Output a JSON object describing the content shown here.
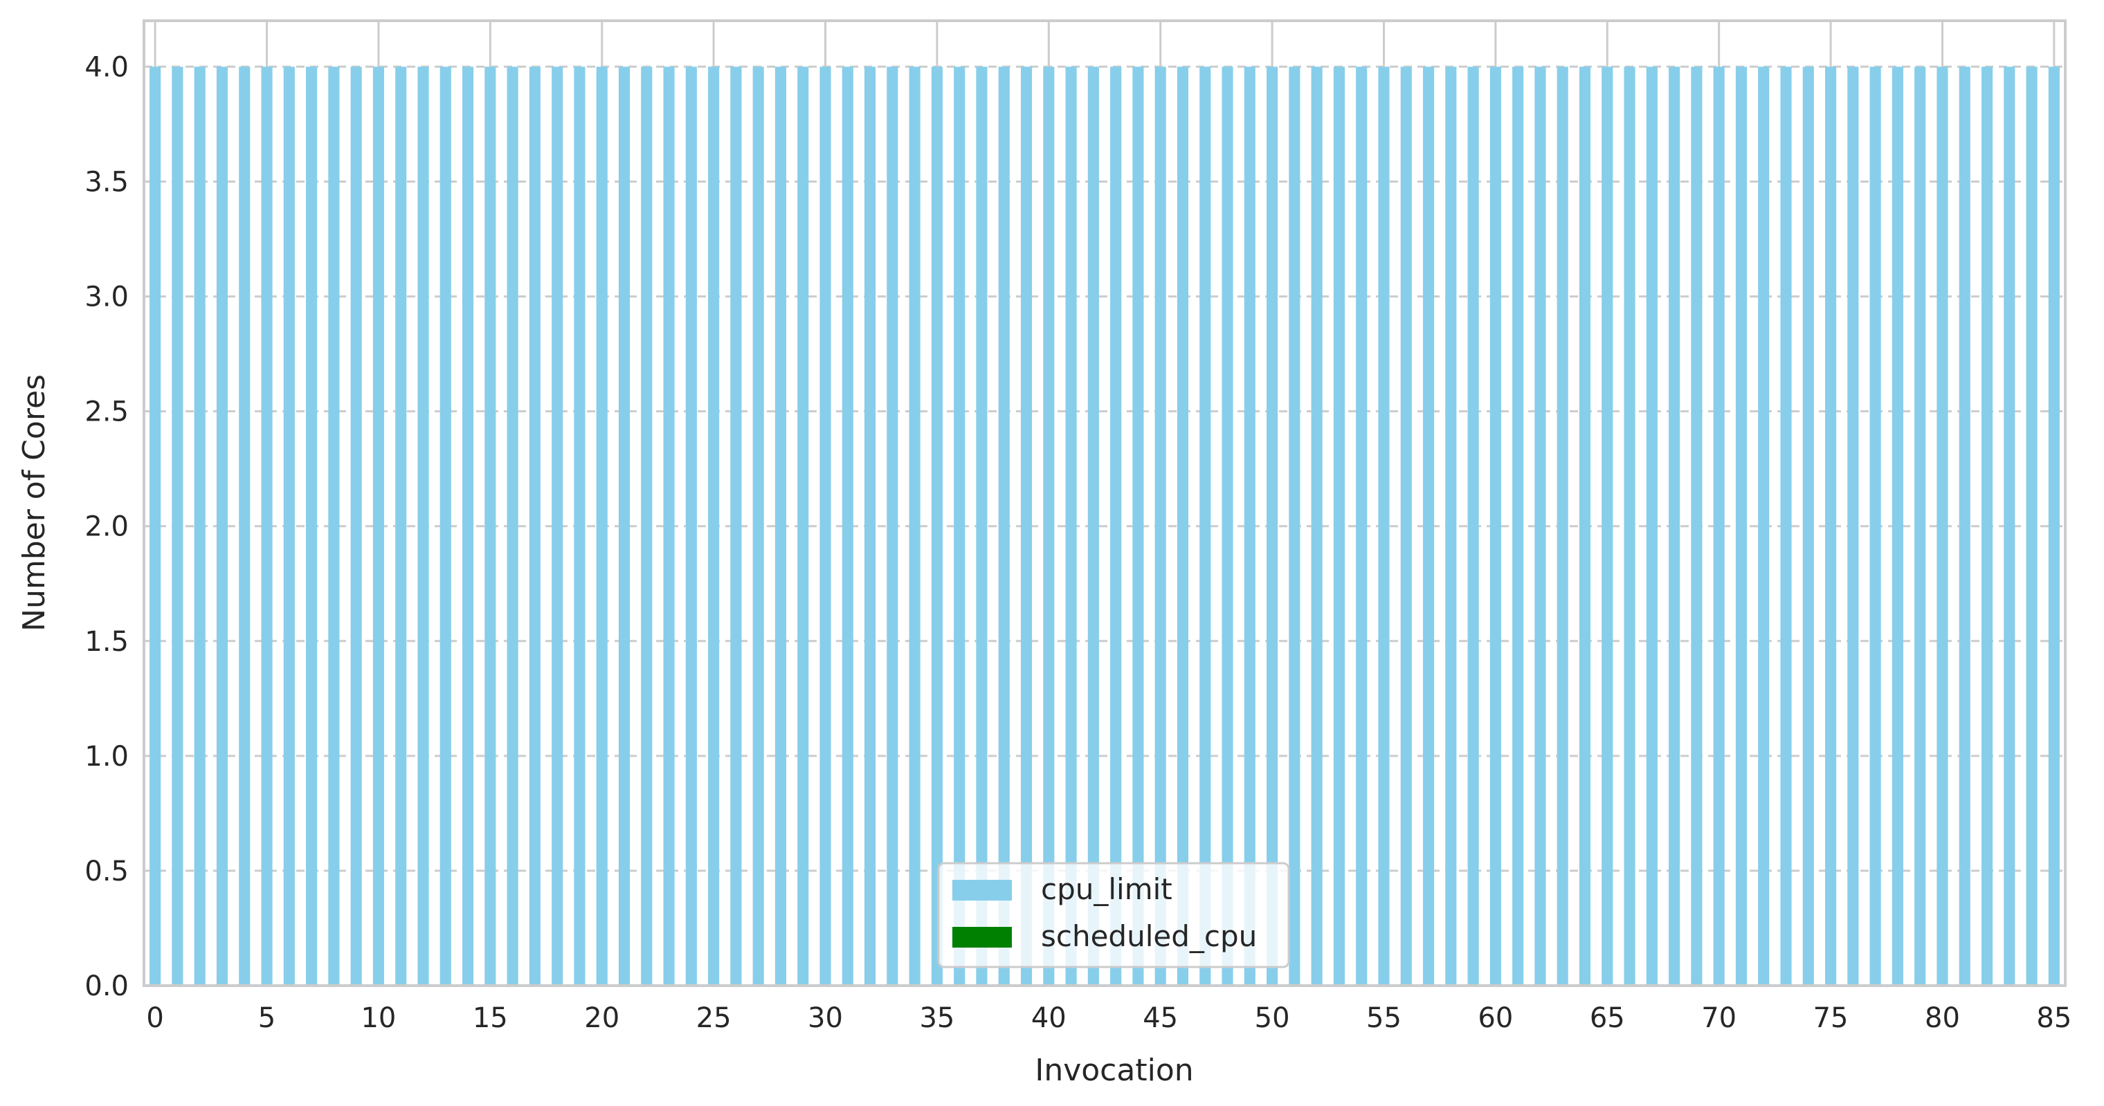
{
  "chart_data": {
    "type": "bar",
    "title": "",
    "xlabel": "Invocation",
    "ylabel": "Number of Cores",
    "x": {
      "start": 0,
      "end": 85,
      "step": 1
    },
    "xlim": [
      -0.5,
      85.5
    ],
    "ylim": [
      0,
      4.2
    ],
    "xticks": [
      0,
      5,
      10,
      15,
      20,
      25,
      30,
      35,
      40,
      45,
      50,
      55,
      60,
      65,
      70,
      75,
      80,
      85
    ],
    "yticks": [
      0.0,
      0.5,
      1.0,
      1.5,
      2.0,
      2.5,
      3.0,
      3.5,
      4.0
    ],
    "grid": {
      "x": true,
      "y": true,
      "y_style": "dashed"
    },
    "series": [
      {
        "name": "cpu_limit",
        "color": "#87CEEB",
        "constant_value": 4.0
      },
      {
        "name": "scheduled_cpu",
        "color": "#008000",
        "constant_value": 0.0
      }
    ],
    "legend": {
      "position": "lower center"
    }
  }
}
